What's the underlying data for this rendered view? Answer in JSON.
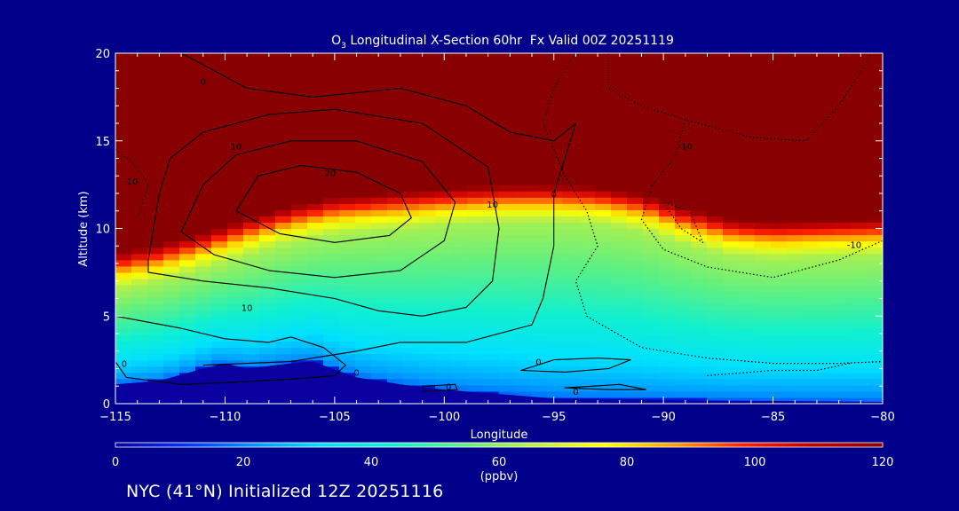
{
  "chart_data": {
    "type": "heatmap",
    "title": "O3 Longitudinal X-Section 60hr  Fx Valid 00Z 20251119",
    "title_parts": {
      "species": "O",
      "subscript": "3",
      "rest": " Longitudinal X-Section 60hr  Fx Valid 00Z 20251119"
    },
    "xlabel": "Longitude",
    "ylabel": "Altitude (km)",
    "xlim": [
      -115,
      -80
    ],
    "ylim": [
      0,
      20
    ],
    "x_ticks": [
      -115,
      -110,
      -105,
      -100,
      -95,
      -90,
      -85,
      -80
    ],
    "x_tick_labels": [
      "−115",
      "−110",
      "−105",
      "−100",
      "−95",
      "−90",
      "−85",
      "−80"
    ],
    "y_ticks": [
      0,
      5,
      10,
      15,
      20
    ],
    "y_tick_labels": [
      "0",
      "5",
      "10",
      "15",
      "20"
    ],
    "colorbar": {
      "ticks": [
        0,
        20,
        40,
        60,
        80,
        100,
        120
      ],
      "tick_labels": [
        "0",
        "20",
        "40",
        "60",
        "80",
        "100",
        "120"
      ],
      "unit": "(ppbv)",
      "range": [
        0,
        120
      ],
      "colors": [
        "#0a00a0",
        "#0030ff",
        "#0096ff",
        "#00e0ff",
        "#10f0d0",
        "#60f080",
        "#c0f040",
        "#ffff00",
        "#ffa000",
        "#ff2000",
        "#c00000",
        "#880000"
      ]
    },
    "tropopause_altitude_km": [
      [
        -115,
        8.6
      ],
      [
        -113,
        9.1
      ],
      [
        -111,
        9.8
      ],
      [
        -109,
        10.6
      ],
      [
        -107,
        11.3
      ],
      [
        -105,
        11.8
      ],
      [
        -103,
        12.0
      ],
      [
        -101,
        12.2
      ],
      [
        -99,
        12.4
      ],
      [
        -97,
        12.5
      ],
      [
        -95,
        12.5
      ],
      [
        -93,
        12.4
      ],
      [
        -91,
        12.0
      ],
      [
        -89,
        11.2
      ],
      [
        -87,
        10.6
      ],
      [
        -85,
        10.4
      ],
      [
        -83,
        10.5
      ],
      [
        -80,
        10.6
      ]
    ],
    "terrain_altitude_km": [
      [
        -115,
        1.1
      ],
      [
        -113,
        1.3
      ],
      [
        -111,
        2.0
      ],
      [
        -110,
        2.3
      ],
      [
        -109,
        2.0
      ],
      [
        -107,
        2.3
      ],
      [
        -106,
        2.4
      ],
      [
        -104,
        1.5
      ],
      [
        -102,
        1.1
      ],
      [
        -100,
        0.8
      ],
      [
        -97,
        0.5
      ],
      [
        -95,
        0.3
      ],
      [
        -90,
        0.2
      ],
      [
        -85,
        0.15
      ],
      [
        -80,
        0.1
      ]
    ],
    "contour_labels": [
      "0",
      "10",
      "20",
      "-10"
    ],
    "contours": [
      {
        "level": 0,
        "style": "solid",
        "points": [
          [
            -112,
            20
          ],
          [
            -109,
            18
          ],
          [
            -106,
            17.5
          ],
          [
            -102,
            18
          ],
          [
            -99,
            17
          ],
          [
            -97,
            15.5
          ],
          [
            -95,
            15
          ],
          [
            -94,
            16
          ],
          [
            -95,
            12
          ],
          [
            -95,
            9
          ],
          [
            -95.5,
            6
          ],
          [
            -96,
            4.5
          ],
          [
            -99,
            3.5
          ],
          [
            -102,
            3.5
          ],
          [
            -104,
            3
          ],
          [
            -105,
            2.8
          ],
          [
            -107,
            2.4
          ],
          [
            -109,
            2.3
          ],
          [
            -111,
            2.2
          ]
        ]
      },
      {
        "level": 10,
        "style": "solid",
        "points": [
          [
            -113.5,
            8.2
          ],
          [
            -113,
            12
          ],
          [
            -112.5,
            14
          ],
          [
            -111,
            15.5
          ],
          [
            -108,
            16.5
          ],
          [
            -105,
            16.8
          ],
          [
            -101,
            16
          ],
          [
            -98,
            13.5
          ],
          [
            -97.5,
            10
          ],
          [
            -97.8,
            7
          ],
          [
            -99,
            5.5
          ],
          [
            -101,
            5
          ],
          [
            -103,
            5.3
          ],
          [
            -105,
            6
          ],
          [
            -108,
            6.6
          ],
          [
            -111,
            7
          ],
          [
            -113.5,
            7.5
          ]
        ]
      },
      {
        "level": 10,
        "style": "solid",
        "points": [
          [
            -112,
            9.8
          ],
          [
            -111,
            12.5
          ],
          [
            -109.5,
            14.2
          ],
          [
            -107,
            15
          ],
          [
            -104,
            15
          ],
          [
            -101,
            13.8
          ],
          [
            -99.5,
            11.5
          ],
          [
            -100,
            9.3
          ],
          [
            -102,
            7.6
          ],
          [
            -105,
            7.2
          ],
          [
            -108,
            7.6
          ],
          [
            -110.5,
            8.5
          ]
        ]
      },
      {
        "level": 20,
        "style": "solid",
        "points": [
          [
            -109.5,
            11
          ],
          [
            -108.5,
            13
          ],
          [
            -106.5,
            13.6
          ],
          [
            -104,
            13.2
          ],
          [
            -102,
            12
          ],
          [
            -101.5,
            10.6
          ],
          [
            -102.5,
            9.6
          ],
          [
            -105,
            9.2
          ],
          [
            -107.5,
            9.7
          ]
        ]
      },
      {
        "level": 0,
        "style": "solid",
        "points": [
          [
            -115,
            5.0
          ],
          [
            -112,
            4.3
          ],
          [
            -110,
            3.7
          ],
          [
            -108,
            3.5
          ],
          [
            -107,
            3.8
          ],
          [
            -105.5,
            3.2
          ],
          [
            -104.5,
            2.2
          ],
          [
            -105,
            1.6
          ],
          [
            -107,
            1.4
          ],
          [
            -110,
            1.2
          ],
          [
            -112,
            1.1
          ],
          [
            -114.5,
            1.5
          ],
          [
            -115,
            2.4
          ]
        ]
      },
      {
        "level": 0,
        "style": "solid",
        "points": [
          [
            -96.5,
            1.9
          ],
          [
            -95,
            2.5
          ],
          [
            -93,
            2.6
          ],
          [
            -91.5,
            2.5
          ],
          [
            -92.5,
            2.0
          ],
          [
            -94.5,
            1.8
          ]
        ]
      },
      {
        "level": 0,
        "style": "solid",
        "points": [
          [
            -94.5,
            0.9
          ],
          [
            -92.5,
            0.8
          ],
          [
            -90.8,
            0.8
          ],
          [
            -92,
            1.1
          ]
        ]
      },
      {
        "level": 0,
        "style": "solid",
        "points": [
          [
            -101,
            1.0
          ],
          [
            -99.5,
            1.1
          ],
          [
            -99.4,
            0.8
          ],
          [
            -101,
            0.7
          ]
        ]
      },
      {
        "level": -10,
        "style": "dotted",
        "points": [
          [
            -92.5,
            20
          ],
          [
            -92.5,
            18
          ],
          [
            -91,
            17
          ],
          [
            -89,
            16.2
          ],
          [
            -86,
            15.2
          ],
          [
            -83.5,
            15
          ],
          [
            -82,
            17
          ],
          [
            -80.5,
            20
          ]
        ]
      },
      {
        "level": -10,
        "style": "dotted",
        "points": [
          [
            -89,
            16.2
          ],
          [
            -89.5,
            14
          ],
          [
            -90.5,
            12.5
          ],
          [
            -91,
            10.5
          ],
          [
            -90,
            8.8
          ],
          [
            -88,
            7.8
          ],
          [
            -85,
            7.2
          ],
          [
            -82,
            8.2
          ],
          [
            -80,
            9.3
          ]
        ]
      },
      {
        "level": -10,
        "style": "dotted",
        "points": [
          [
            -90,
            11.5
          ],
          [
            -89.2,
            10
          ],
          [
            -88.2,
            9.2
          ],
          [
            -88.8,
            11
          ]
        ]
      },
      {
        "level": -10,
        "style": "dotted",
        "points": [
          [
            -94,
            20
          ],
          [
            -95,
            18
          ],
          [
            -95.5,
            16
          ],
          [
            -94.5,
            13
          ],
          [
            -93.5,
            11
          ],
          [
            -93,
            9
          ],
          [
            -94,
            7
          ],
          [
            -93.5,
            5
          ],
          [
            -91,
            3.2
          ],
          [
            -88,
            2.6
          ],
          [
            -85,
            2.3
          ],
          [
            -82,
            2.3
          ],
          [
            -80,
            2.4
          ]
        ]
      },
      {
        "level": -10,
        "style": "dotted",
        "points": [
          [
            -88,
            1.6
          ],
          [
            -85,
            1.9
          ],
          [
            -83,
            1.9
          ],
          [
            -81.5,
            2.3
          ]
        ]
      },
      {
        "level": 0,
        "style": "dotted",
        "points": [
          [
            -115,
            14.5
          ],
          [
            -114,
            13.5
          ],
          [
            -113.5,
            12.5
          ],
          [
            -114,
            10.5
          ]
        ]
      }
    ],
    "contour_label_positions": [
      {
        "text": "0",
        "lon": -111.0,
        "alt": 18.4
      },
      {
        "text": "10",
        "lon": -109.5,
        "alt": 14.7
      },
      {
        "text": "20",
        "lon": -105.2,
        "alt": 13.2
      },
      {
        "text": "10",
        "lon": -97.8,
        "alt": 11.4
      },
      {
        "text": "0",
        "lon": -95.0,
        "alt": 12.0
      },
      {
        "text": "10",
        "lon": -109.0,
        "alt": 5.5
      },
      {
        "text": "0",
        "lon": -114.6,
        "alt": 2.3
      },
      {
        "text": "0",
        "lon": -104.0,
        "alt": 1.8
      },
      {
        "text": "0",
        "lon": -95.7,
        "alt": 2.4
      },
      {
        "text": "0",
        "lon": -99.8,
        "alt": 1.0
      },
      {
        "text": "0",
        "lon": -94.0,
        "alt": 0.7
      },
      {
        "text": "-10",
        "lon": -89.0,
        "alt": 14.7
      },
      {
        "text": "-10",
        "lon": -81.3,
        "alt": 9.1
      },
      {
        "text": "-10",
        "lon": -114.3,
        "alt": 12.7
      }
    ],
    "initialized": "NYC (41°N) Initialized 12Z 20251116"
  }
}
